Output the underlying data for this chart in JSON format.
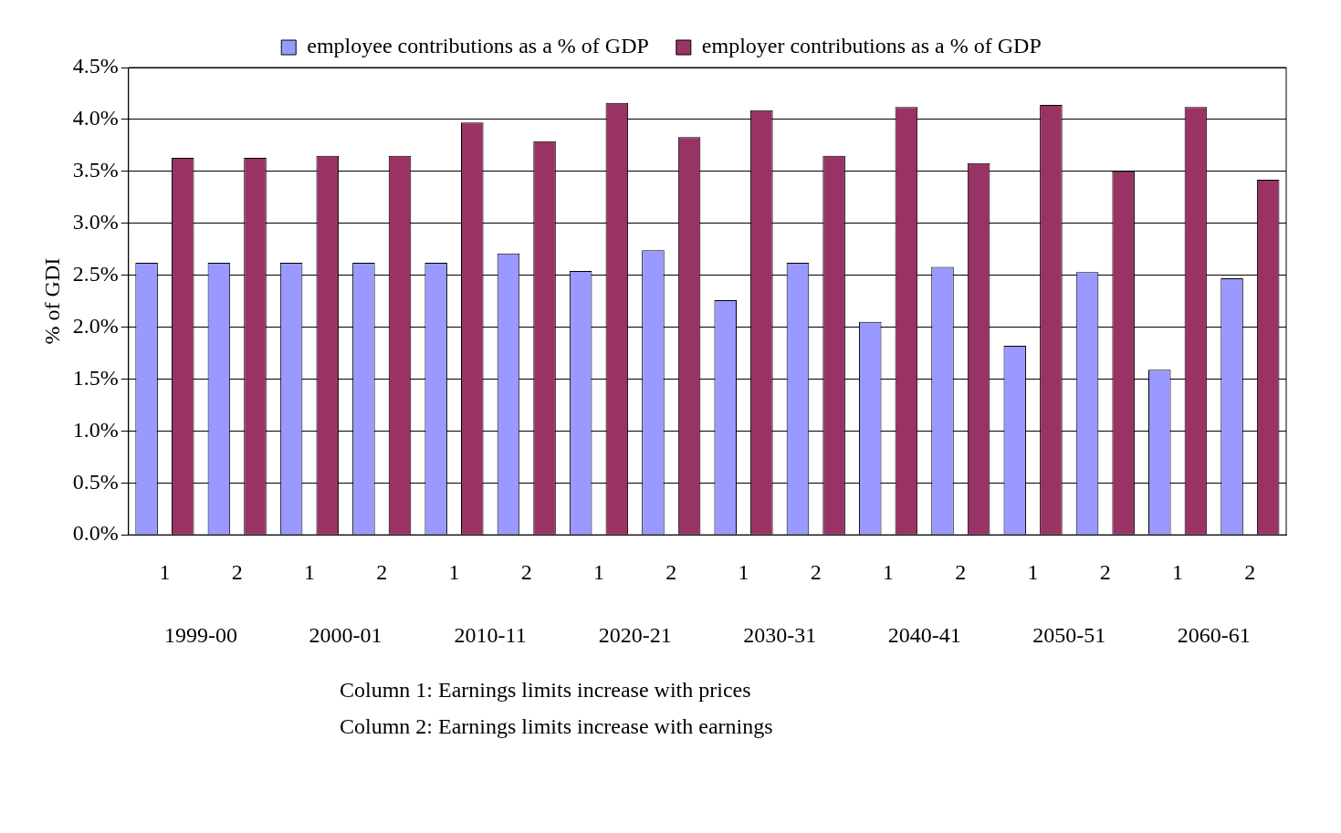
{
  "chart_data": {
    "type": "bar",
    "ylabel": "% of GDI",
    "categories": [
      "1",
      "2",
      "1",
      "2",
      "1",
      "2",
      "1",
      "2",
      "1",
      "2",
      "1",
      "2",
      "1",
      "2",
      "1",
      "2"
    ],
    "series": [
      {
        "name": "employee contributions as a % of GDP",
        "color": "#9999ff",
        "values": [
          2.62,
          2.62,
          2.62,
          2.62,
          2.62,
          2.71,
          2.54,
          2.74,
          2.26,
          2.62,
          2.05,
          2.58,
          1.82,
          2.53,
          1.59,
          2.47
        ]
      },
      {
        "name": "employer contributions as a % of GDP",
        "color": "#993366",
        "values": [
          3.63,
          3.63,
          3.65,
          3.65,
          3.97,
          3.79,
          4.16,
          3.83,
          4.09,
          3.65,
          4.12,
          3.58,
          4.14,
          3.5,
          4.12,
          3.42
        ]
      }
    ],
    "ylim": [
      0,
      4.5
    ],
    "yticks": [
      {
        "value": 0,
        "label": "0.0%"
      },
      {
        "value": 0.5,
        "label": "0.5%"
      },
      {
        "value": 1,
        "label": "1.0%"
      },
      {
        "value": 1.5,
        "label": "1.5%"
      },
      {
        "value": 2,
        "label": "2.0%"
      },
      {
        "value": 2.5,
        "label": "2.5%"
      },
      {
        "value": 3,
        "label": "3.0%"
      },
      {
        "value": 3.5,
        "label": "3.5%"
      },
      {
        "value": 4,
        "label": "4.0%"
      },
      {
        "value": 4.5,
        "label": "4.5%"
      }
    ],
    "grid": "y",
    "legend": "top",
    "annotations": [
      "1999-00",
      "2000-01",
      "2010-11",
      "2020-21",
      "2030-31",
      "2040-41",
      "2050-51",
      "2060-61",
      "Column 1: Earnings limits increase with prices",
      "Column 2: Earnings limits increase with earnings"
    ]
  }
}
